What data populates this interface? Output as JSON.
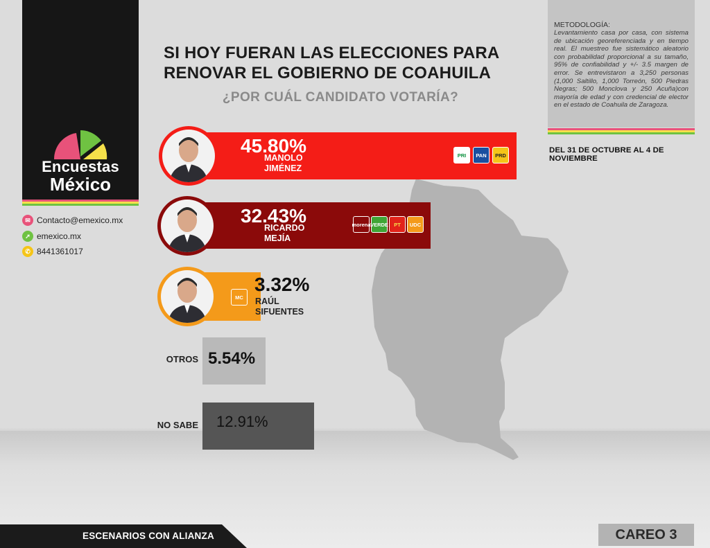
{
  "brand": {
    "name_line1": "Encuestas",
    "name_line2": "México",
    "stripe_colors": [
      "#e8527a",
      "#f5e04a",
      "#6fc242"
    ]
  },
  "contact": [
    {
      "icon": "envelope-icon",
      "text": "Contacto@emexico.mx",
      "color": "#e8527a"
    },
    {
      "icon": "cursor-icon",
      "text": "emexico.mx",
      "color": "#6fc242"
    },
    {
      "icon": "phone-icon",
      "text": "8441361017",
      "color": "#f5c518"
    }
  ],
  "title": {
    "line1": "SI HOY FUERAN LAS ELECCIONES PARA",
    "line2": "RENOVAR EL GOBIERNO DE COAHUILA",
    "subtitle": "¿POR CUÁL CANDIDATO VOTARÍA?"
  },
  "methodology": {
    "heading": "METODOLOGÍA:",
    "body": "Levantamiento casa por casa, con sistema de ubicación georeferenciada y en tiempo real. El muestreo fue sistemático aleatorio con probabilidad proporcional a su tamaño, 95% de confiabilidad y +/- 3.5 margen de error. Se entrevistaron a 3,250 personas (1,000 Saltillo, 1,000 Torreón, 500 Piedras Negras; 500 Monclova y 250 Acuña)con mayoría de edad y con credencial de elector en el estado de Coahuila de Zaragoza."
  },
  "date_range": "DEL 31 DE OCTUBRE AL 4 DE NOVIEMBRE",
  "chart_data": {
    "type": "bar",
    "orientation": "horizontal",
    "categories": [
      "MANOLO JIMÉNEZ",
      "RICARDO MEJÍA",
      "RAÚL SIFUENTES",
      "OTROS",
      "NO SABE"
    ],
    "values": [
      45.8,
      32.43,
      3.32,
      5.54,
      12.91
    ],
    "value_labels": [
      "45.80%",
      "32.43%",
      "3.32%",
      "5.54%",
      "12.91%"
    ],
    "bar_colors": [
      "#f41d17",
      "#8b0a0a",
      "#f49a1a",
      "#b9b9b9",
      "#555555"
    ],
    "candidates": [
      {
        "name_line1": "MANOLO",
        "name_line2": "JIMÉNEZ",
        "parties": [
          "PRI",
          "PAN",
          "PRD"
        ]
      },
      {
        "name_line1": "RICARDO",
        "name_line2": "MEJÍA",
        "parties": [
          "morena",
          "VERDE",
          "PT",
          "UDC"
        ]
      },
      {
        "name_line1": "RAÚL",
        "name_line2": "SIFUENTES",
        "parties": [
          "MC"
        ]
      }
    ],
    "other_labels": [
      "OTROS",
      "NO SABE"
    ]
  },
  "footer": {
    "left": "ESCENARIOS CON ALIANZA",
    "right": "CAREO 3"
  }
}
